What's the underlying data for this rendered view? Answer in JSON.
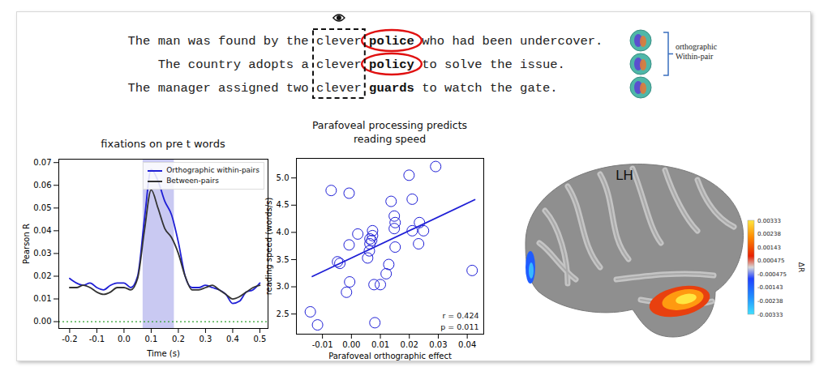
{
  "header": {
    "sentences": [
      {
        "pre": "The man was found by the",
        "preview": "clever",
        "target": "police",
        "post": "who had been undercover.",
        "circled": true
      },
      {
        "pre": "The country adopts a",
        "preview": "clever",
        "target": "policy",
        "post": "to solve the issue.",
        "circled": true
      },
      {
        "pre": "The manager assigned two",
        "preview": "clever",
        "target": "guards",
        "post": "to watch the gate.",
        "circled": false
      }
    ],
    "bracket_label": [
      "orthographic",
      "Within-pair"
    ]
  },
  "chart_data": [
    {
      "type": "line",
      "title": "fixations on pre t words",
      "x_label": "Time (s)",
      "y_label": "Pearson R",
      "x": [
        -0.2,
        -0.175,
        -0.15,
        -0.125,
        -0.1,
        -0.075,
        -0.05,
        -0.025,
        0,
        0.025,
        0.05,
        0.075,
        0.1,
        0.125,
        0.15,
        0.175,
        0.2,
        0.225,
        0.25,
        0.275,
        0.3,
        0.325,
        0.35,
        0.375,
        0.4,
        0.425,
        0.45,
        0.475,
        0.5
      ],
      "series": [
        {
          "name": "Orthographic within-pairs",
          "color": "#1f1fd6",
          "values": [
            0.019,
            0.017,
            0.016,
            0.017,
            0.015,
            0.014,
            0.016,
            0.017,
            0.017,
            0.015,
            0.02,
            0.045,
            0.067,
            0.062,
            0.053,
            0.047,
            0.035,
            0.02,
            0.015,
            0.015,
            0.016,
            0.015,
            0.014,
            0.012,
            0.008,
            0.009,
            0.013,
            0.014,
            0.017
          ]
        },
        {
          "name": "Between-pairs",
          "color": "#333333",
          "values": [
            0.015,
            0.015,
            0.016,
            0.015,
            0.013,
            0.012,
            0.013,
            0.015,
            0.015,
            0.014,
            0.019,
            0.04,
            0.058,
            0.05,
            0.041,
            0.037,
            0.03,
            0.02,
            0.014,
            0.014,
            0.015,
            0.016,
            0.014,
            0.012,
            0.01,
            0.011,
            0.013,
            0.015,
            0.016
          ]
        }
      ],
      "xlim": [
        -0.24,
        0.53
      ],
      "ylim": [
        -0.003,
        0.0715
      ],
      "xticks": [
        -0.2,
        -0.1,
        {
          "value": 0,
          "label": "0.0"
        },
        0.1,
        0.2,
        0.3,
        0.4,
        0.5
      ],
      "yticks": [
        {
          "value": 0,
          "label": "0.00"
        },
        0.01,
        0.02,
        0.03,
        0.04,
        0.05,
        0.06,
        0.07
      ],
      "legend": "upper right",
      "highlight": {
        "x": [
          0.07,
          0.185
        ],
        "color": "#c9c9f2"
      },
      "reference_line": {
        "y": 0,
        "color": "#2ca02c",
        "line_style": "dotted"
      }
    },
    {
      "type": "scatter",
      "title": "Parafoveal processing predicts\nreading speed",
      "x_label": "Parafoveal orthographic effect",
      "y_label": "reading speed (words/s)",
      "x": [
        -0.0142,
        -0.0117,
        -0.007,
        -0.0048,
        -0.004,
        -0.0008,
        -0.0017,
        -0.0006,
        -0.0008,
        0.0022,
        0.0056,
        0.0062,
        0.0064,
        0.007,
        0.0073,
        0.0073,
        0.0064,
        0.0081,
        0.0078,
        0.01,
        0.012,
        0.0129,
        0.0137,
        0.0148,
        0.0151,
        0.0148,
        0.0151,
        0.0199,
        0.021,
        0.021,
        0.0235,
        0.0232,
        0.0249,
        0.0291,
        0.0417
      ],
      "values": [
        2.54,
        2.3,
        4.77,
        3.46,
        3.43,
        4.72,
        2.9,
        3.09,
        3.77,
        3.97,
        3.53,
        3.66,
        3.79,
        3.85,
        3.94,
        4.03,
        3.88,
        2.34,
        3.04,
        3.04,
        3.24,
        3.41,
        4.57,
        4.3,
        4.18,
        4.07,
        3.73,
        5.05,
        4.61,
        4.03,
        4.18,
        3.79,
        4.03,
        5.21,
        3.3
      ],
      "color": "#1f1fd6",
      "marker": "open_circle",
      "xlim": [
        -0.019,
        0.0457
      ],
      "ylim": [
        2.13,
        5.36
      ],
      "xticks": [
        -0.01,
        {
          "value": 0,
          "label": "0.00"
        },
        0.01,
        0.02,
        0.03,
        0.04
      ],
      "yticks": [
        2.5,
        {
          "value": 3,
          "label": "3.0"
        },
        3.5,
        {
          "value": 4,
          "label": "4.0"
        },
        4.5,
        {
          "value": 5,
          "label": "5.0"
        }
      ],
      "fit_line": {
        "x": [
          -0.0135,
          0.0426
        ],
        "y": [
          3.19,
          4.6
        ]
      },
      "annotations": [
        "r = 0.424",
        "p = 0.011"
      ]
    }
  ],
  "brain": {
    "title": "LH",
    "colorbar": {
      "label": "ΔR",
      "range": [
        -0.00333,
        0.00333
      ],
      "ticks": [
        0.00333,
        0.00238,
        0.00143,
        0.000475,
        -0.000475,
        -0.00143,
        -0.00238,
        -0.00333
      ]
    }
  }
}
